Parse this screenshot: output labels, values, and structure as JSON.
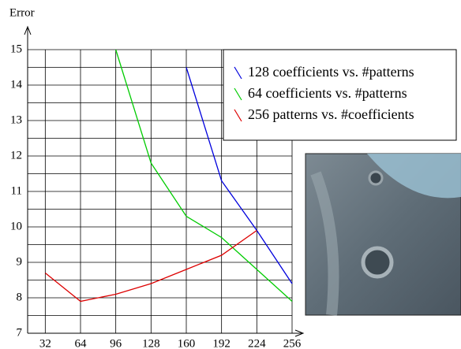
{
  "chart_data": {
    "type": "line",
    "y_label": "Error",
    "x": [
      32,
      64,
      96,
      128,
      160,
      192,
      224,
      256
    ],
    "xlim": [
      16,
      256
    ],
    "xticks": [
      32,
      64,
      96,
      128,
      160,
      192,
      224,
      256
    ],
    "ylim": [
      7,
      15
    ],
    "yticks": [
      7,
      8,
      9,
      10,
      11,
      12,
      13,
      14,
      15
    ],
    "grid": true,
    "legend": "top-right",
    "series": [
      {
        "name": "128 coefficients vs. #patterns",
        "color": "#0000dd",
        "values": [
          null,
          null,
          null,
          null,
          14.5,
          11.3,
          9.9,
          8.4
        ]
      },
      {
        "name": "64 coefficients vs. #patterns",
        "color": "#00cc00",
        "values": [
          null,
          null,
          15,
          11.8,
          10.3,
          9.7,
          8.8,
          7.9
        ]
      },
      {
        "name": "256 patterns vs. #coefficients",
        "color": "#dd0000",
        "values": [
          8.7,
          7.9,
          8.1,
          8.4,
          8.8,
          9.2,
          9.9,
          null
        ]
      }
    ]
  }
}
